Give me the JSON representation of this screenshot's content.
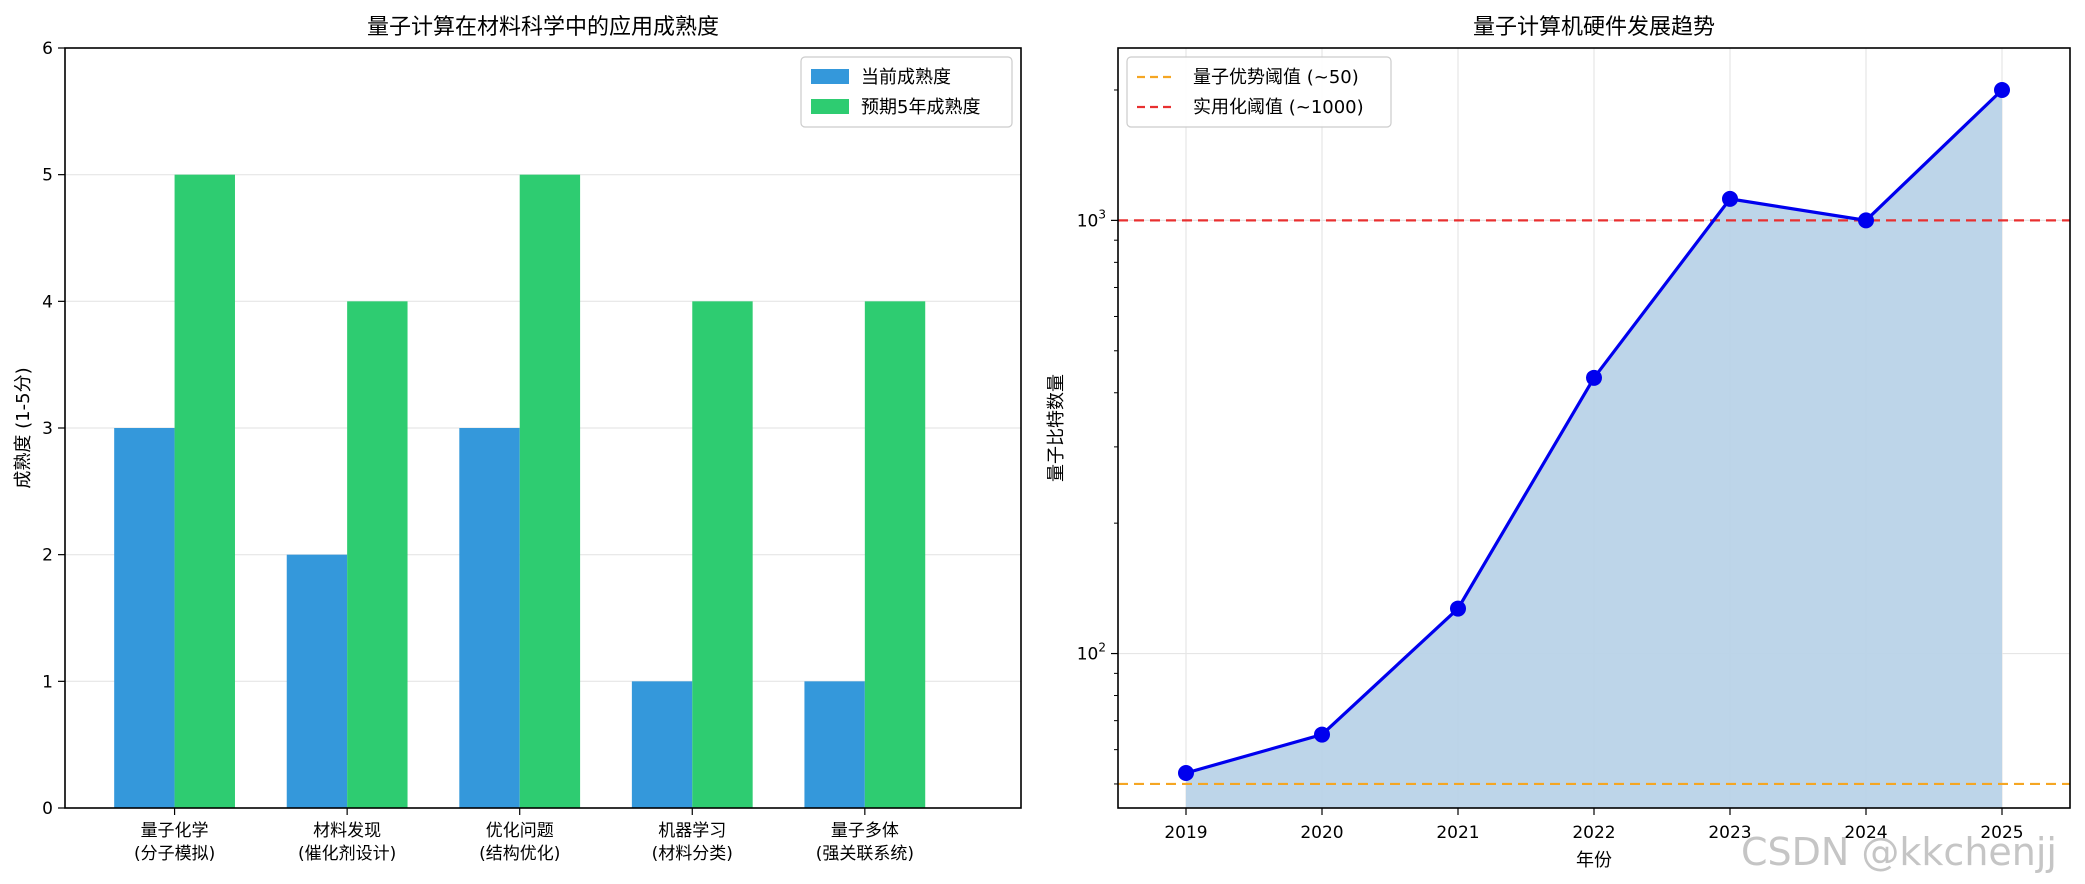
{
  "watermark": "CSDN @kkchenjj",
  "chart_data": [
    {
      "type": "bar",
      "title": "量子计算在材料科学中的应用成熟度",
      "xlabel": "",
      "ylabel": "成熟度 (1-5分)",
      "ylim": [
        0,
        6
      ],
      "yticks": [
        0,
        1,
        2,
        3,
        4,
        5,
        6
      ],
      "grid": true,
      "legend_position": "top-right",
      "categories": [
        [
          "量子化学",
          "(分子模拟)"
        ],
        [
          "材料发现",
          "(催化剂设计)"
        ],
        [
          "优化问题",
          "(结构优化)"
        ],
        [
          "机器学习",
          "(材料分类)"
        ],
        [
          "量子多体",
          "(强关联系统)"
        ]
      ],
      "series": [
        {
          "name": "当前成熟度",
          "color": "#3498db",
          "values": [
            3,
            2,
            3,
            1,
            1
          ]
        },
        {
          "name": "预期5年成熟度",
          "color": "#2ecc71",
          "values": [
            5,
            4,
            5,
            4,
            4
          ]
        }
      ]
    },
    {
      "type": "line",
      "title": "量子计算机硬件发展趋势",
      "xlabel": "年份",
      "ylabel": "量子比特数量",
      "yscale": "log",
      "xlim": [
        2018.5,
        2025.5
      ],
      "ylim": [
        44,
        2500
      ],
      "x": [
        2019,
        2020,
        2021,
        2022,
        2023,
        2024,
        2025
      ],
      "xticks": [
        2019,
        2020,
        2021,
        2022,
        2023,
        2024,
        2025
      ],
      "yticks": [
        {
          "value": 100,
          "base": "10",
          "exp": "2"
        },
        {
          "value": 1000,
          "base": "10",
          "exp": "3"
        }
      ],
      "grid": true,
      "legend_position": "top-left",
      "series": [
        {
          "name": "",
          "color": "#0000ee",
          "fill": "#b9d3e8",
          "marker": "circle",
          "values": [
            53,
            65,
            127,
            433,
            1121,
            1000,
            2000
          ]
        }
      ],
      "thresholds": [
        {
          "name": "量子优势阈值 (~50)",
          "value": 50,
          "color": "#f5a623",
          "style": "dashed"
        },
        {
          "name": "实用化阈值 (~1000)",
          "value": 1000,
          "color": "#e83030",
          "style": "dashed"
        }
      ]
    }
  ]
}
